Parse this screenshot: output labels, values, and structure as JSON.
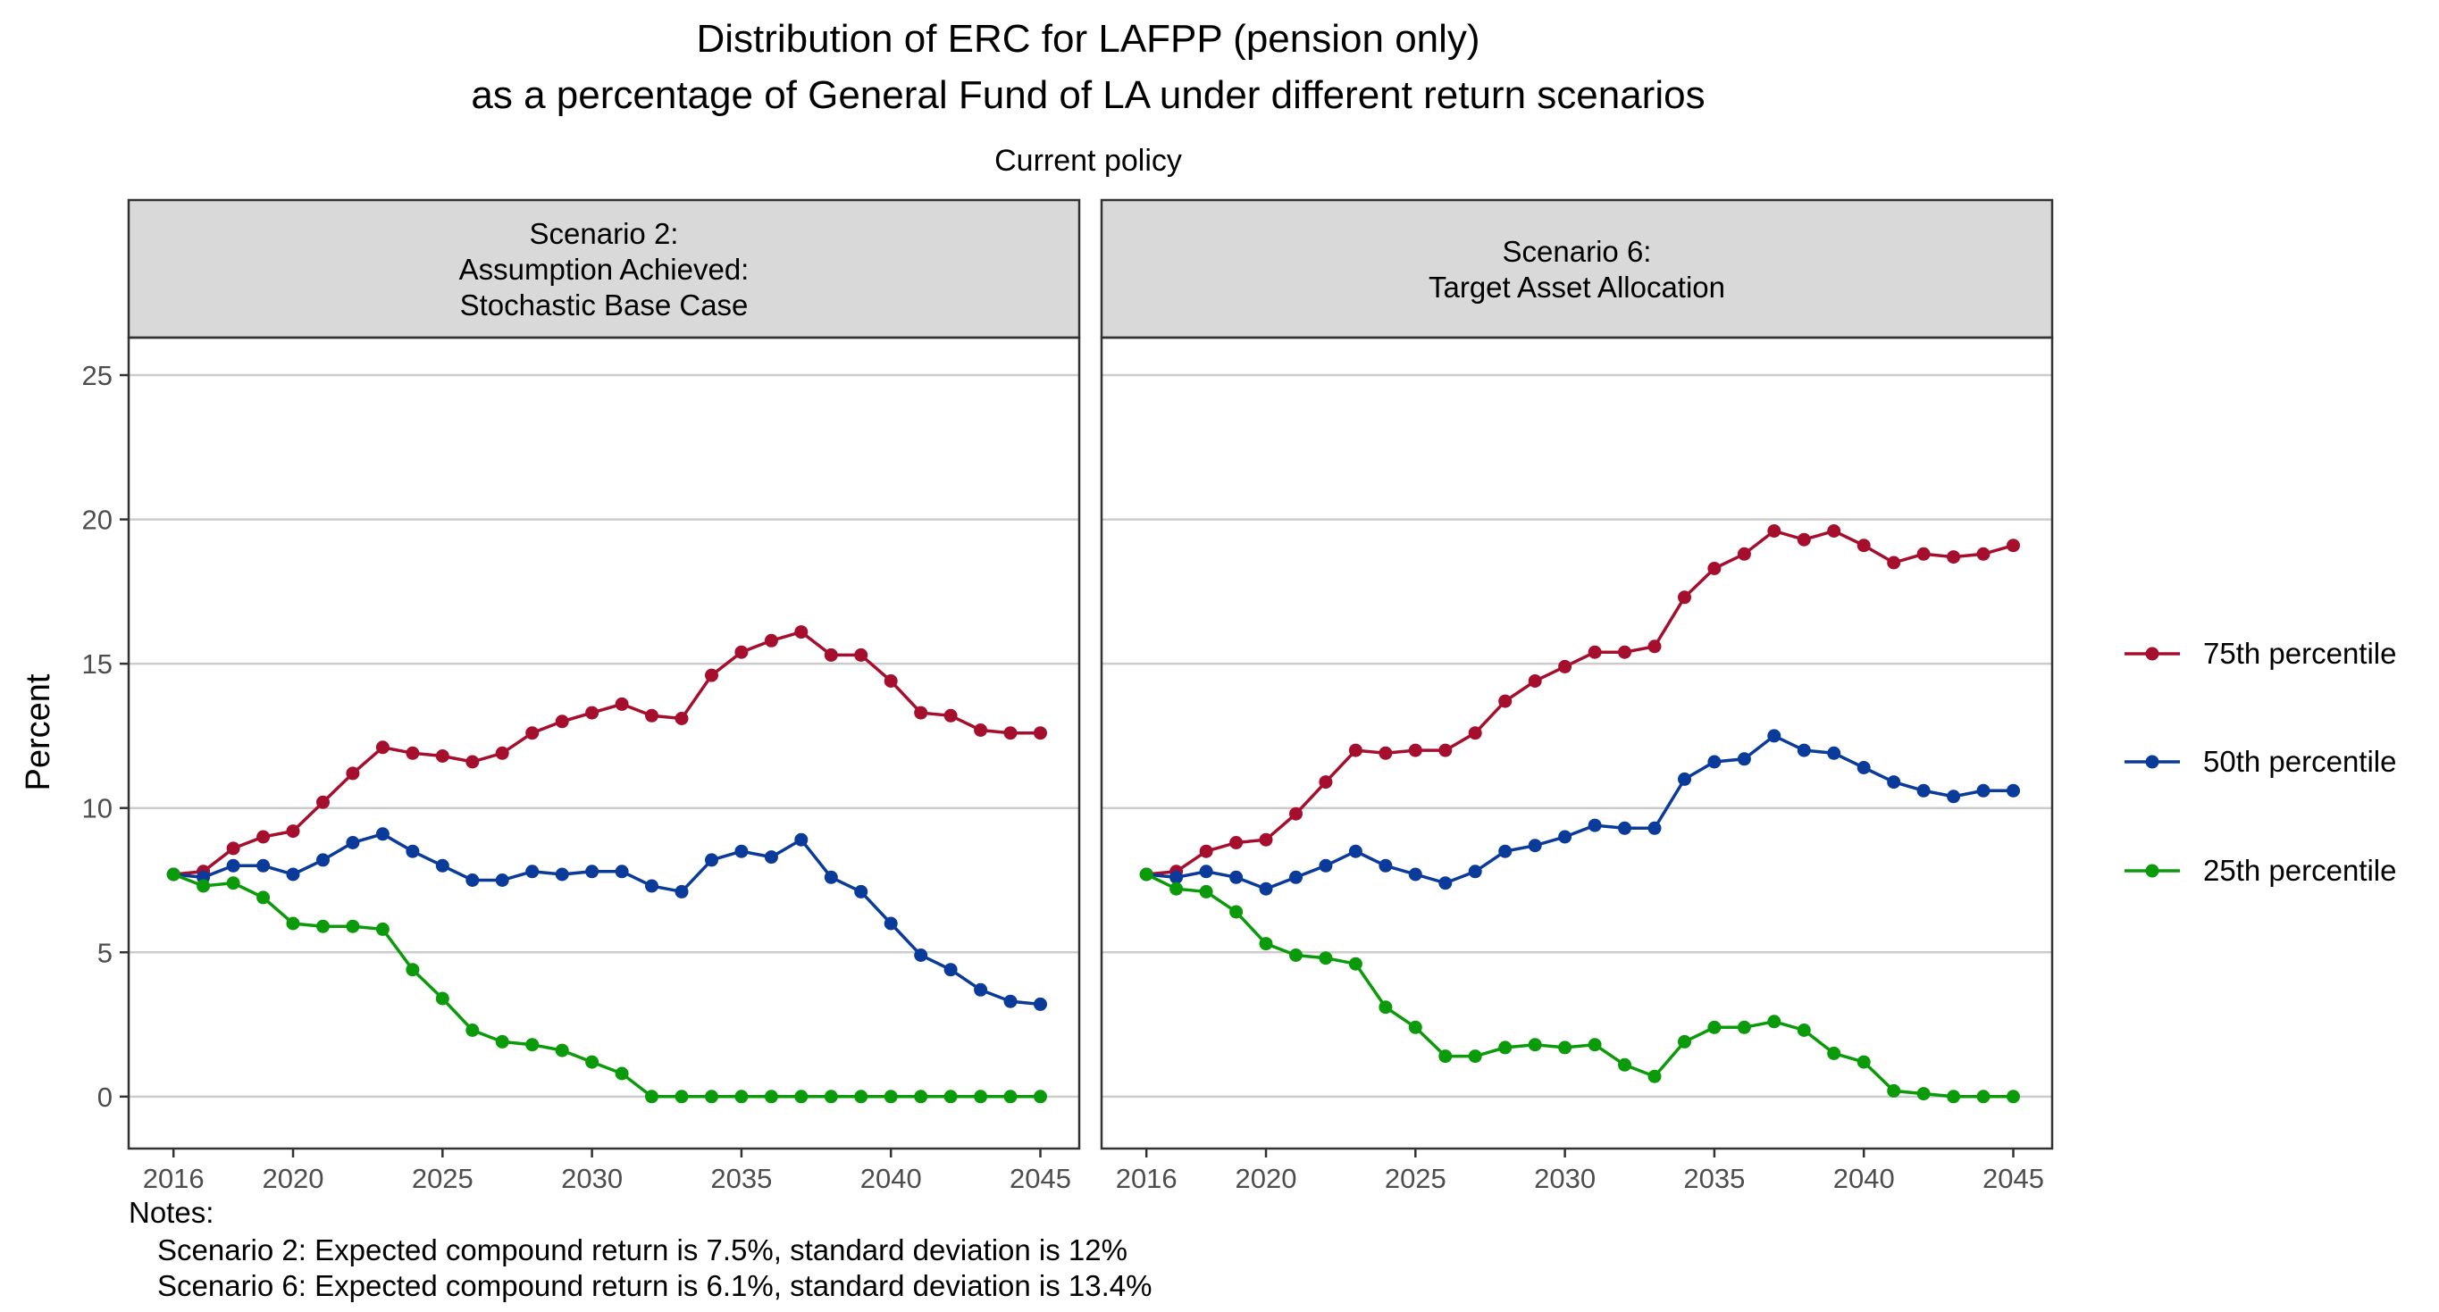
{
  "chart_data": {
    "type": "line",
    "title": "Distribution of ERC for LAFPP (pension only)",
    "title_line2": "as a percentage of General Fund of LA under different return scenarios",
    "subtitle": "Current policy",
    "ylabel": "Percent",
    "xlabel": "",
    "ylim": [
      -1.8,
      26.3
    ],
    "yticks": [
      0,
      5,
      10,
      15,
      20,
      25
    ],
    "xlim": [
      2014.5,
      2046.3
    ],
    "xticks": [
      2016,
      2020,
      2025,
      2030,
      2035,
      2040,
      2045
    ],
    "grid": "horizontal",
    "legend_position": "right",
    "colors": {
      "p75": "#A50F2D",
      "p50": "#0A3A9A",
      "p25": "#0A9A0A",
      "strip_bg": "#D9D9D9",
      "grid": "#CCCCCC"
    },
    "x": [
      2016,
      2017,
      2018,
      2019,
      2020,
      2021,
      2022,
      2023,
      2024,
      2025,
      2026,
      2027,
      2028,
      2029,
      2030,
      2031,
      2032,
      2033,
      2034,
      2035,
      2036,
      2037,
      2038,
      2039,
      2040,
      2041,
      2042,
      2043,
      2044,
      2045
    ],
    "legend": [
      {
        "key": "p75",
        "label": "75th percentile"
      },
      {
        "key": "p50",
        "label": "50th percentile"
      },
      {
        "key": "p25",
        "label": "25th percentile"
      }
    ],
    "panels": [
      {
        "strip": [
          "Scenario 2:",
          "Assumption Achieved:",
          "Stochastic Base Case"
        ],
        "series": {
          "p75": [
            7.7,
            7.8,
            8.6,
            9.0,
            9.2,
            10.2,
            11.2,
            12.1,
            11.9,
            11.8,
            11.6,
            11.9,
            12.6,
            13.0,
            13.3,
            13.6,
            13.2,
            13.1,
            14.6,
            15.4,
            15.8,
            16.1,
            15.3,
            15.3,
            14.4,
            13.3,
            13.2,
            12.7,
            12.6,
            12.6
          ],
          "p50": [
            7.7,
            7.6,
            8.0,
            8.0,
            7.7,
            8.2,
            8.8,
            9.1,
            8.5,
            8.0,
            7.5,
            7.5,
            7.8,
            7.7,
            7.8,
            7.8,
            7.3,
            7.1,
            8.2,
            8.5,
            8.3,
            8.9,
            7.6,
            7.1,
            6.0,
            4.9,
            4.4,
            3.7,
            3.3,
            3.2
          ],
          "p25": [
            7.7,
            7.3,
            7.4,
            6.9,
            6.0,
            5.9,
            5.9,
            5.8,
            4.4,
            3.4,
            2.3,
            1.9,
            1.8,
            1.6,
            1.2,
            0.8,
            0.0,
            0.0,
            0.0,
            0.0,
            0.0,
            0.0,
            0.0,
            0.0,
            0.0,
            0.0,
            0.0,
            0.0,
            0.0,
            0.0
          ]
        }
      },
      {
        "strip": [
          "Scenario 6:",
          "Target Asset Allocation"
        ],
        "series": {
          "p75": [
            7.7,
            7.8,
            8.5,
            8.8,
            8.9,
            9.8,
            10.9,
            12.0,
            11.9,
            12.0,
            12.0,
            12.6,
            13.7,
            14.4,
            14.9,
            15.4,
            15.4,
            15.6,
            17.3,
            18.3,
            18.8,
            19.6,
            19.3,
            19.6,
            19.1,
            18.5,
            18.8,
            18.7,
            18.8,
            19.1
          ],
          "p50": [
            7.7,
            7.6,
            7.8,
            7.6,
            7.2,
            7.6,
            8.0,
            8.5,
            8.0,
            7.7,
            7.4,
            7.8,
            8.5,
            8.7,
            9.0,
            9.4,
            9.3,
            9.3,
            11.0,
            11.6,
            11.7,
            12.5,
            12.0,
            11.9,
            11.4,
            10.9,
            10.6,
            10.4,
            10.6,
            10.6
          ],
          "p25": [
            7.7,
            7.2,
            7.1,
            6.4,
            5.3,
            4.9,
            4.8,
            4.6,
            3.1,
            2.4,
            1.4,
            1.4,
            1.7,
            1.8,
            1.7,
            1.8,
            1.1,
            0.7,
            1.9,
            2.4,
            2.4,
            2.6,
            2.3,
            1.5,
            1.2,
            0.2,
            0.1,
            0.0,
            0.0,
            0.0
          ]
        }
      }
    ],
    "notes": [
      "Notes:",
      "Scenario 2: Expected compound return is 7.5%, standard deviation is 12%",
      "Scenario 6: Expected compound return is 6.1%, standard deviation is 13.4%"
    ]
  }
}
